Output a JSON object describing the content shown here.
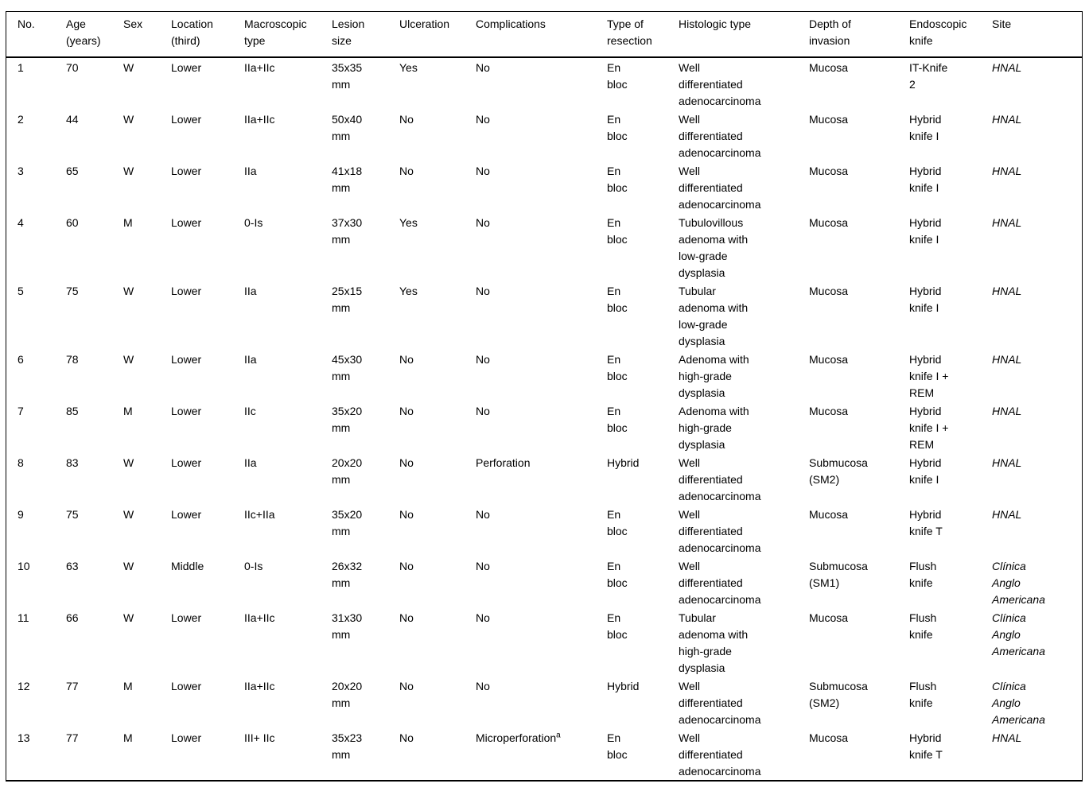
{
  "table": {
    "columns": [
      {
        "key": "no",
        "label": "No."
      },
      {
        "key": "age",
        "label": "Age\n(years)"
      },
      {
        "key": "sex",
        "label": "Sex"
      },
      {
        "key": "location",
        "label": "Location\n(third)"
      },
      {
        "key": "macroscopic-type",
        "label": "Macroscopic\ntype"
      },
      {
        "key": "lesion-size",
        "label": "Lesion\nsize"
      },
      {
        "key": "ulceration",
        "label": "Ulceration"
      },
      {
        "key": "complications",
        "label": "Complications"
      },
      {
        "key": "resection-type",
        "label": "Type of\nresection"
      },
      {
        "key": "histologic-type",
        "label": "Histologic type"
      },
      {
        "key": "invasion-depth",
        "label": "Depth of\ninvasion"
      },
      {
        "key": "endoscopic-knife",
        "label": "Endoscopic\nknife"
      },
      {
        "key": "site",
        "label": "Site"
      }
    ],
    "rows": [
      [
        "1",
        "70",
        "W",
        "Lower",
        "IIa+IIc",
        "35x35\nmm",
        "Yes",
        "No",
        "En\nbloc",
        "Well\ndifferentiated\nadenocarcinoma",
        "Mucosa",
        "IT-Knife\n2",
        "HNAL"
      ],
      [
        "2",
        "44",
        "W",
        "Lower",
        "IIa+IIc",
        "50x40\nmm",
        "No",
        "No",
        "En\nbloc",
        "Well\ndifferentiated\nadenocarcinoma",
        "Mucosa",
        "Hybrid\nknife I",
        "HNAL"
      ],
      [
        "3",
        "65",
        "W",
        "Lower",
        "IIa",
        "41x18\nmm",
        "No",
        "No",
        "En\nbloc",
        "Well\ndifferentiated\nadenocarcinoma",
        "Mucosa",
        "Hybrid\nknife I",
        "HNAL"
      ],
      [
        "4",
        "60",
        "M",
        "Lower",
        "0-Is",
        "37x30\nmm",
        "Yes",
        "No",
        "En\nbloc",
        "Tubulovillous\nadenoma with\nlow-grade\ndysplasia",
        "Mucosa",
        "Hybrid\nknife I",
        "HNAL"
      ],
      [
        "5",
        "75",
        "W",
        "Lower",
        "IIa",
        "25x15\nmm",
        "Yes",
        "No",
        "En\nbloc",
        "Tubular\nadenoma with\nlow-grade\ndysplasia",
        "Mucosa",
        "Hybrid\nknife I",
        "HNAL"
      ],
      [
        "6",
        "78",
        "W",
        "Lower",
        "IIa",
        "45x30\nmm",
        "No",
        "No",
        "En\nbloc",
        "Adenoma with\nhigh-grade\ndysplasia",
        "Mucosa",
        "Hybrid\nknife I +\nREM",
        "HNAL"
      ],
      [
        "7",
        "85",
        "M",
        "Lower",
        "IIc",
        "35x20\nmm",
        "No",
        "No",
        "En\nbloc",
        "Adenoma with\nhigh-grade\ndysplasia",
        "Mucosa",
        "Hybrid\nknife I +\nREM",
        "HNAL"
      ],
      [
        "8",
        "83",
        "W",
        "Lower",
        "IIa",
        "20x20\nmm",
        "No",
        "Perforation",
        "Hybrid",
        "Well\ndifferentiated\nadenocarcinoma",
        "Submucosa\n(SM2)",
        "Hybrid\nknife I",
        "HNAL"
      ],
      [
        "9",
        "75",
        "W",
        "Lower",
        "IIc+IIa",
        "35x20\nmm",
        "No",
        "No",
        "En\nbloc",
        "Well\ndifferentiated\nadenocarcinoma",
        "Mucosa",
        "Hybrid\nknife T",
        "HNAL"
      ],
      [
        "10",
        "63",
        "W",
        "Middle",
        "0-Is",
        "26x32\nmm",
        "No",
        "No",
        "En\nbloc",
        "Well\ndifferentiated\nadenocarcinoma",
        "Submucosa\n(SM1)",
        "Flush\nknife",
        "Clínica\nAnglo\nAmericana"
      ],
      [
        "11",
        "66",
        "W",
        "Lower",
        "IIa+IIc",
        "31x30\nmm",
        "No",
        "No",
        "En\nbloc",
        "Tubular\nadenoma with\nhigh-grade\ndysplasia",
        "Mucosa",
        "Flush\nknife",
        "Clínica\nAnglo\nAmericana"
      ],
      [
        "12",
        "77",
        "M",
        "Lower",
        "IIa+IIc",
        "20x20\nmm",
        "No",
        "No",
        "Hybrid",
        "Well\ndifferentiated\nadenocarcinoma",
        "Submucosa\n(SM2)",
        "Flush\nknife",
        "Clínica\nAnglo\nAmericana"
      ],
      [
        "13",
        "77",
        "M",
        "Lower",
        "III+ IIc",
        "35x23\nmm",
        "No",
        {
          "text": "Microperforation",
          "sup": "a"
        },
        "En\nbloc",
        "Well\ndifferentiated\nadenocarcinoma",
        "Mucosa",
        "Hybrid\nknife T",
        "HNAL"
      ]
    ]
  }
}
